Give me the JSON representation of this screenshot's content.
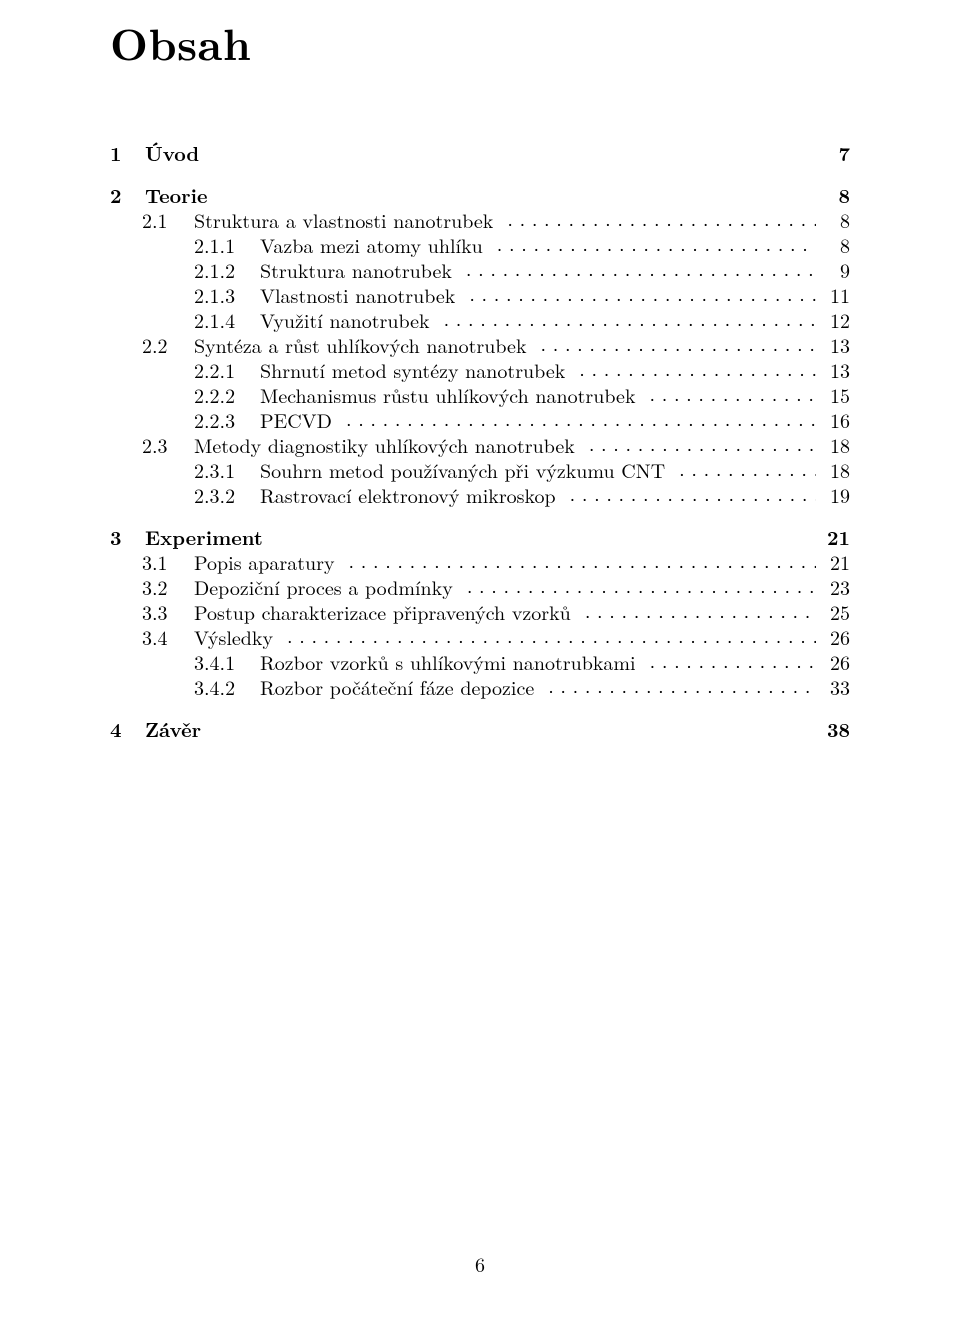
{
  "title": "Obsah",
  "footer_page_number": "6",
  "toc": [
    {
      "num": "1",
      "label": "Úvod",
      "page": "7",
      "type": "chapter",
      "children": []
    },
    {
      "num": "2",
      "label": "Teorie",
      "page": "8",
      "type": "chapter",
      "children": [
        {
          "num": "2.1",
          "label": "Struktura a vlastnosti nanotrubek",
          "page": "8",
          "type": "section",
          "children": [
            {
              "num": "2.1.1",
              "label": "Vazba mezi atomy uhlíku",
              "page": "8",
              "type": "subsection"
            },
            {
              "num": "2.1.2",
              "label": "Struktura nanotrubek",
              "page": "9",
              "type": "subsection"
            },
            {
              "num": "2.1.3",
              "label": "Vlastnosti nanotrubek",
              "page": "11",
              "type": "subsection"
            },
            {
              "num": "2.1.4",
              "label": "Využití nanotrubek",
              "page": "12",
              "type": "subsection"
            }
          ]
        },
        {
          "num": "2.2",
          "label": "Syntéza a růst uhlíkových nanotrubek",
          "page": "13",
          "type": "section",
          "children": [
            {
              "num": "2.2.1",
              "label": "Shrnutí metod syntézy nanotrubek",
              "page": "13",
              "type": "subsection"
            },
            {
              "num": "2.2.2",
              "label": "Mechanismus růstu uhlíkových nanotrubek",
              "page": "15",
              "type": "subsection"
            },
            {
              "num": "2.2.3",
              "label": "PECVD",
              "page": "16",
              "type": "subsection"
            }
          ]
        },
        {
          "num": "2.3",
          "label": "Metody diagnostiky uhlíkových nanotrubek",
          "page": "18",
          "type": "section",
          "children": [
            {
              "num": "2.3.1",
              "label": "Souhrn metod používaných při výzkumu CNT",
              "page": "18",
              "type": "subsection"
            },
            {
              "num": "2.3.2",
              "label": "Rastrovací elektronový mikroskop",
              "page": "19",
              "type": "subsection"
            }
          ]
        }
      ]
    },
    {
      "num": "3",
      "label": "Experiment",
      "page": "21",
      "type": "chapter",
      "children": [
        {
          "num": "3.1",
          "label": "Popis aparatury",
          "page": "21",
          "type": "section",
          "children": []
        },
        {
          "num": "3.2",
          "label": "Depoziční proces a podmínky",
          "page": "23",
          "type": "section",
          "children": []
        },
        {
          "num": "3.3",
          "label": "Postup charakterizace připravených vzorků",
          "page": "25",
          "type": "section",
          "children": []
        },
        {
          "num": "3.4",
          "label": "Výsledky",
          "page": "26",
          "type": "section",
          "children": [
            {
              "num": "3.4.1",
              "label": "Rozbor vzorků s uhlíkovými nanotrubkami",
              "page": "26",
              "type": "subsection"
            },
            {
              "num": "3.4.2",
              "label": "Rozbor počáteční fáze depozice",
              "page": "33",
              "type": "subsection"
            }
          ]
        }
      ]
    },
    {
      "num": "4",
      "label": "Závěr",
      "page": "38",
      "type": "chapter",
      "children": []
    }
  ]
}
